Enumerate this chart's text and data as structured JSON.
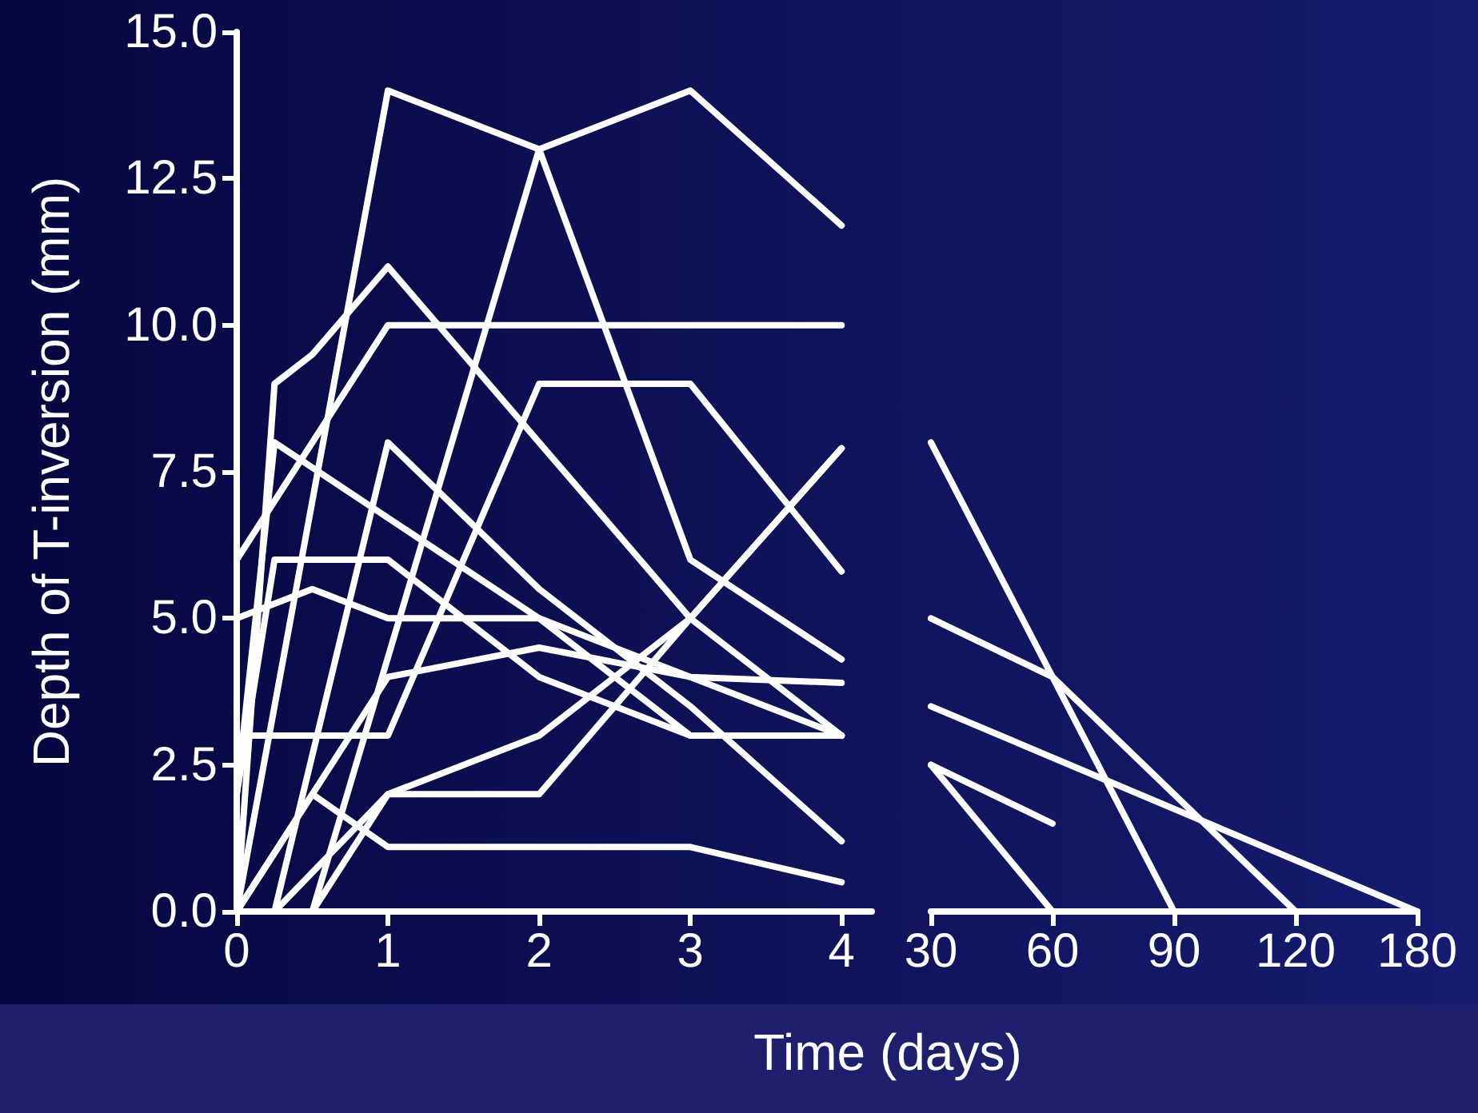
{
  "chart_data": [
    {
      "type": "line",
      "xlabel": "Time (days)",
      "ylabel": "Depth of T-inversion (mm)",
      "xlim": [
        0,
        4.2
      ],
      "xticks": [
        0,
        1,
        2,
        3,
        4
      ],
      "ylim": [
        0,
        15
      ],
      "yticks": [
        {
          "value": 0,
          "label": "0.0"
        },
        {
          "value": 2.5,
          "label": "2.5"
        },
        {
          "value": 5,
          "label": "5.0"
        },
        {
          "value": 7.5,
          "label": "7.5"
        },
        {
          "value": 10,
          "label": "10.0"
        },
        {
          "value": 12.5,
          "label": "12.5"
        },
        {
          "value": 15,
          "label": "15.0"
        }
      ],
      "grid": false,
      "marker": "none",
      "line_style": "solid",
      "series": [
        {
          "color": "#ffffff",
          "x": [
            0,
            1,
            2,
            3,
            4
          ],
          "values": [
            0,
            14,
            13,
            14,
            11.7
          ]
        },
        {
          "color": "#ffffff",
          "x": [
            0.5,
            2,
            3,
            4
          ],
          "values": [
            0,
            13,
            6,
            4.3
          ]
        },
        {
          "color": "#ffffff",
          "x": [
            0,
            0.25,
            0.5,
            1,
            2,
            3,
            4
          ],
          "values": [
            0,
            9,
            9.5,
            11,
            8,
            5,
            3
          ]
        },
        {
          "color": "#ffffff",
          "x": [
            0,
            1,
            2,
            3,
            4
          ],
          "values": [
            6,
            10,
            10,
            10,
            10
          ]
        },
        {
          "color": "#ffffff",
          "x": [
            0,
            1,
            2,
            3,
            4
          ],
          "values": [
            3,
            3,
            9,
            9,
            5.8
          ]
        },
        {
          "color": "#ffffff",
          "x": [
            0.5,
            1,
            2,
            3,
            4
          ],
          "values": [
            0,
            2,
            2,
            5,
            7.9
          ]
        },
        {
          "color": "#ffffff",
          "x": [
            0.25,
            1,
            2,
            3,
            4
          ],
          "values": [
            0,
            8,
            5.5,
            3.5,
            1.2
          ]
        },
        {
          "color": "#ffffff",
          "x": [
            0,
            0.25,
            2,
            3,
            4
          ],
          "values": [
            2,
            8,
            5,
            3,
            3
          ]
        },
        {
          "color": "#ffffff",
          "x": [
            0,
            0.25,
            1,
            2,
            3,
            4
          ],
          "values": [
            2,
            6,
            6,
            4,
            3,
            3
          ]
        },
        {
          "color": "#ffffff",
          "x": [
            0,
            0.5,
            1,
            2,
            3,
            4
          ],
          "values": [
            5,
            5.5,
            5,
            5,
            4,
            3.9
          ]
        },
        {
          "color": "#ffffff",
          "x": [
            0,
            1,
            2,
            3,
            4
          ],
          "values": [
            0,
            4,
            4.5,
            4,
            3
          ]
        },
        {
          "color": "#ffffff",
          "x": [
            0,
            0.5,
            1,
            2,
            3,
            4
          ],
          "values": [
            0,
            2,
            1.1,
            1.1,
            1.1,
            0.5
          ]
        },
        {
          "color": "#ffffff",
          "x": [
            0.25,
            1,
            2,
            3,
            4
          ],
          "values": [
            0,
            2,
            3,
            5,
            7.9
          ]
        }
      ]
    },
    {
      "type": "line",
      "categories": [
        "30",
        "60",
        "90",
        "120",
        "180"
      ],
      "ylim": [
        0,
        15
      ],
      "tick_labels": "x",
      "grid": false,
      "marker": "none",
      "line_style": "solid",
      "series": [
        {
          "color": "#ffffff",
          "values": [
            8,
            null,
            0,
            null,
            null
          ]
        },
        {
          "color": "#ffffff",
          "values": [
            5,
            4,
            null,
            0,
            null
          ]
        },
        {
          "color": "#ffffff",
          "values": [
            3.5,
            null,
            null,
            null,
            0
          ]
        },
        {
          "color": "#ffffff",
          "values": [
            2.5,
            1.5,
            null,
            null,
            null
          ]
        },
        {
          "color": "#ffffff",
          "values": [
            2.5,
            0,
            null,
            null,
            null
          ]
        }
      ]
    }
  ]
}
